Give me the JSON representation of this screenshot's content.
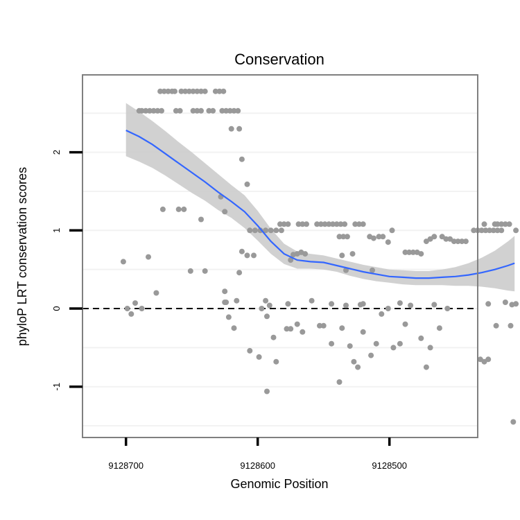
{
  "chart_data": {
    "type": "scatter",
    "title": "Conservation",
    "xlabel": "Genomic Position",
    "ylabel": "phyloP LRT conservation scores",
    "x_reversed": true,
    "xlim": [
      9128733,
      9128433
    ],
    "ylim": [
      -1.65,
      2.99
    ],
    "x_ticks": [
      9128700,
      9128600,
      9128500
    ],
    "x_tick_labels": [
      "9128700",
      "9128600",
      "9128500"
    ],
    "y_ticks": [
      -1,
      0,
      1,
      2
    ],
    "y_tick_labels": [
      "-1",
      "0",
      "1",
      "2"
    ],
    "reference_line": {
      "y": 0,
      "style": "dashed"
    },
    "colors": {
      "points": "#999999",
      "smooth": "#3366ff",
      "ribbon": "#cccccc",
      "grid": "#f2f2f2",
      "frame": "#7f7f7f"
    },
    "points": [
      {
        "x": 9128690,
        "y": 2.53
      },
      {
        "x": 9128688,
        "y": 2.53
      },
      {
        "x": 9128685,
        "y": 2.53
      },
      {
        "x": 9128682,
        "y": 2.53
      },
      {
        "x": 9128679,
        "y": 2.53
      },
      {
        "x": 9128676,
        "y": 2.53
      },
      {
        "x": 9128673,
        "y": 2.53
      },
      {
        "x": 9128674,
        "y": 2.78
      },
      {
        "x": 9128671,
        "y": 2.78
      },
      {
        "x": 9128668,
        "y": 2.78
      },
      {
        "x": 9128665,
        "y": 2.78
      },
      {
        "x": 9128663,
        "y": 2.78
      },
      {
        "x": 9128658,
        "y": 2.78
      },
      {
        "x": 9128655,
        "y": 2.78
      },
      {
        "x": 9128652,
        "y": 2.78
      },
      {
        "x": 9128649,
        "y": 2.78
      },
      {
        "x": 9128646,
        "y": 2.78
      },
      {
        "x": 9128643,
        "y": 2.78
      },
      {
        "x": 9128640,
        "y": 2.78
      },
      {
        "x": 9128632,
        "y": 2.78
      },
      {
        "x": 9128629,
        "y": 2.78
      },
      {
        "x": 9128626,
        "y": 2.78
      },
      {
        "x": 9128662,
        "y": 2.53
      },
      {
        "x": 9128659,
        "y": 2.53
      },
      {
        "x": 9128649,
        "y": 2.53
      },
      {
        "x": 9128646,
        "y": 2.53
      },
      {
        "x": 9128643,
        "y": 2.53
      },
      {
        "x": 9128637,
        "y": 2.53
      },
      {
        "x": 9128634,
        "y": 2.53
      },
      {
        "x": 9128627,
        "y": 2.53
      },
      {
        "x": 9128624,
        "y": 2.53
      },
      {
        "x": 9128621,
        "y": 2.53
      },
      {
        "x": 9128618,
        "y": 2.53
      },
      {
        "x": 9128615,
        "y": 2.53
      },
      {
        "x": 9128620,
        "y": 2.3
      },
      {
        "x": 9128614,
        "y": 2.3
      },
      {
        "x": 9128612,
        "y": 1.91
      },
      {
        "x": 9128608,
        "y": 1.59
      },
      {
        "x": 9128672,
        "y": 1.27
      },
      {
        "x": 9128660,
        "y": 1.27
      },
      {
        "x": 9128656,
        "y": 1.27
      },
      {
        "x": 9128643,
        "y": 1.14
      },
      {
        "x": 9128628,
        "y": 1.43
      },
      {
        "x": 9128625,
        "y": 1.24
      },
      {
        "x": 9128606,
        "y": 1.0
      },
      {
        "x": 9128602,
        "y": 1.0
      },
      {
        "x": 9128598,
        "y": 1.0
      },
      {
        "x": 9128594,
        "y": 1.0
      },
      {
        "x": 9128590,
        "y": 1.0
      },
      {
        "x": 9128586,
        "y": 1.0
      },
      {
        "x": 9128582,
        "y": 1.0
      },
      {
        "x": 9128583,
        "y": 1.08
      },
      {
        "x": 9128580,
        "y": 1.08
      },
      {
        "x": 9128577,
        "y": 1.08
      },
      {
        "x": 9128569,
        "y": 1.08
      },
      {
        "x": 9128566,
        "y": 1.08
      },
      {
        "x": 9128563,
        "y": 1.08
      },
      {
        "x": 9128555,
        "y": 1.08
      },
      {
        "x": 9128552,
        "y": 1.08
      },
      {
        "x": 9128549,
        "y": 1.08
      },
      {
        "x": 9128546,
        "y": 1.08
      },
      {
        "x": 9128543,
        "y": 1.08
      },
      {
        "x": 9128540,
        "y": 1.08
      },
      {
        "x": 9128537,
        "y": 1.08
      },
      {
        "x": 9128534,
        "y": 1.08
      },
      {
        "x": 9128526,
        "y": 1.08
      },
      {
        "x": 9128523,
        "y": 1.08
      },
      {
        "x": 9128520,
        "y": 1.08
      },
      {
        "x": 9128538,
        "y": 0.92
      },
      {
        "x": 9128535,
        "y": 0.92
      },
      {
        "x": 9128532,
        "y": 0.92
      },
      {
        "x": 9128515,
        "y": 0.92
      },
      {
        "x": 9128512,
        "y": 0.9
      },
      {
        "x": 9128508,
        "y": 0.92
      },
      {
        "x": 9128505,
        "y": 0.92
      },
      {
        "x": 9128501,
        "y": 0.85
      },
      {
        "x": 9128498,
        "y": 1.0
      },
      {
        "x": 9128472,
        "y": 0.86
      },
      {
        "x": 9128469,
        "y": 0.89
      },
      {
        "x": 9128466,
        "y": 0.92
      },
      {
        "x": 9128460,
        "y": 0.92
      },
      {
        "x": 9128457,
        "y": 0.89
      },
      {
        "x": 9128454,
        "y": 0.89
      },
      {
        "x": 9128451,
        "y": 0.86
      },
      {
        "x": 9128448,
        "y": 0.86
      },
      {
        "x": 9128445,
        "y": 0.86
      },
      {
        "x": 9128442,
        "y": 0.86
      },
      {
        "x": 9128436,
        "y": 1.0
      },
      {
        "x": 9128433,
        "y": 1.0
      },
      {
        "x": 9128430,
        "y": 1.0
      },
      {
        "x": 9128427,
        "y": 1.0
      },
      {
        "x": 9128424,
        "y": 1.0
      },
      {
        "x": 9128421,
        "y": 1.0
      },
      {
        "x": 9128418,
        "y": 1.0
      },
      {
        "x": 9128415,
        "y": 1.0
      },
      {
        "x": 9128428,
        "y": 1.08
      },
      {
        "x": 9128420,
        "y": 1.08
      },
      {
        "x": 9128418,
        "y": 1.08
      },
      {
        "x": 9128415,
        "y": 1.08
      },
      {
        "x": 9128412,
        "y": 1.08
      },
      {
        "x": 9128409,
        "y": 1.08
      },
      {
        "x": 9128404,
        "y": 1.0
      },
      {
        "x": 9128612,
        "y": 0.73
      },
      {
        "x": 9128608,
        "y": 0.68
      },
      {
        "x": 9128603,
        "y": 0.68
      },
      {
        "x": 9128573,
        "y": 0.69
      },
      {
        "x": 9128570,
        "y": 0.7
      },
      {
        "x": 9128567,
        "y": 0.72
      },
      {
        "x": 9128564,
        "y": 0.7
      },
      {
        "x": 9128536,
        "y": 0.68
      },
      {
        "x": 9128528,
        "y": 0.7
      },
      {
        "x": 9128488,
        "y": 0.72
      },
      {
        "x": 9128485,
        "y": 0.72
      },
      {
        "x": 9128482,
        "y": 0.72
      },
      {
        "x": 9128479,
        "y": 0.72
      },
      {
        "x": 9128476,
        "y": 0.7
      },
      {
        "x": 9128640,
        "y": 0.48
      },
      {
        "x": 9128625,
        "y": 0.22
      },
      {
        "x": 9128614,
        "y": 0.46
      },
      {
        "x": 9128575,
        "y": 0.62
      },
      {
        "x": 9128533,
        "y": 0.49
      },
      {
        "x": 9128513,
        "y": 0.49
      },
      {
        "x": 9128702,
        "y": 0.6
      },
      {
        "x": 9128683,
        "y": 0.66
      },
      {
        "x": 9128677,
        "y": 0.2
      },
      {
        "x": 9128651,
        "y": 0.48
      },
      {
        "x": 9128699,
        "y": 0.0
      },
      {
        "x": 9128696,
        "y": -0.07
      },
      {
        "x": 9128693,
        "y": 0.07
      },
      {
        "x": 9128688,
        "y": 0.0
      },
      {
        "x": 9128624,
        "y": 0.08
      },
      {
        "x": 9128616,
        "y": 0.1
      },
      {
        "x": 9128597,
        "y": 0.0
      },
      {
        "x": 9128594,
        "y": 0.1
      },
      {
        "x": 9128591,
        "y": 0.04
      },
      {
        "x": 9128577,
        "y": 0.06
      },
      {
        "x": 9128559,
        "y": 0.1
      },
      {
        "x": 9128544,
        "y": 0.06
      },
      {
        "x": 9128533,
        "y": 0.04
      },
      {
        "x": 9128522,
        "y": 0.05
      },
      {
        "x": 9128520,
        "y": 0.06
      },
      {
        "x": 9128501,
        "y": 0.0
      },
      {
        "x": 9128492,
        "y": 0.07
      },
      {
        "x": 9128484,
        "y": 0.04
      },
      {
        "x": 9128466,
        "y": 0.05
      },
      {
        "x": 9128456,
        "y": 0.0
      },
      {
        "x": 9128425,
        "y": 0.06
      },
      {
        "x": 9128412,
        "y": 0.08
      },
      {
        "x": 9128407,
        "y": 0.05
      },
      {
        "x": 9128404,
        "y": 0.06
      },
      {
        "x": 9128625,
        "y": 0.08
      },
      {
        "x": 9128622,
        "y": -0.11
      },
      {
        "x": 9128618,
        "y": -0.25
      },
      {
        "x": 9128606,
        "y": -0.54
      },
      {
        "x": 9128599,
        "y": -0.62
      },
      {
        "x": 9128593,
        "y": -0.1
      },
      {
        "x": 9128588,
        "y": -0.37
      },
      {
        "x": 9128586,
        "y": -0.68
      },
      {
        "x": 9128578,
        "y": -0.26
      },
      {
        "x": 9128575,
        "y": -0.26
      },
      {
        "x": 9128570,
        "y": -0.2
      },
      {
        "x": 9128566,
        "y": -0.3
      },
      {
        "x": 9128553,
        "y": -0.22
      },
      {
        "x": 9128550,
        "y": -0.22
      },
      {
        "x": 9128544,
        "y": -0.45
      },
      {
        "x": 9128538,
        "y": -0.94
      },
      {
        "x": 9128536,
        "y": -0.25
      },
      {
        "x": 9128530,
        "y": -0.48
      },
      {
        "x": 9128527,
        "y": -0.68
      },
      {
        "x": 9128524,
        "y": -0.75
      },
      {
        "x": 9128520,
        "y": -0.3
      },
      {
        "x": 9128514,
        "y": -0.6
      },
      {
        "x": 9128510,
        "y": -0.45
      },
      {
        "x": 9128506,
        "y": -0.07
      },
      {
        "x": 9128497,
        "y": -0.5
      },
      {
        "x": 9128492,
        "y": -0.45
      },
      {
        "x": 9128488,
        "y": -0.2
      },
      {
        "x": 9128476,
        "y": -0.38
      },
      {
        "x": 9128472,
        "y": -0.75
      },
      {
        "x": 9128469,
        "y": -0.5
      },
      {
        "x": 9128462,
        "y": -0.25
      },
      {
        "x": 9128431,
        "y": -0.65
      },
      {
        "x": 9128428,
        "y": -0.68
      },
      {
        "x": 9128425,
        "y": -0.65
      },
      {
        "x": 9128419,
        "y": -0.22
      },
      {
        "x": 9128408,
        "y": -0.22
      },
      {
        "x": 9128593,
        "y": -1.06
      },
      {
        "x": 9128406,
        "y": -1.45
      }
    ],
    "smooth": {
      "x": [
        9128700,
        9128690,
        9128680,
        9128670,
        9128660,
        9128650,
        9128640,
        9128630,
        9128620,
        9128610,
        9128600,
        9128590,
        9128580,
        9128570,
        9128560,
        9128550,
        9128540,
        9128530,
        9128520,
        9128510,
        9128500,
        9128490,
        9128480,
        9128470,
        9128460,
        9128450,
        9128440,
        9128430,
        9128420,
        9128410,
        9128405
      ],
      "y": [
        2.28,
        2.2,
        2.1,
        1.98,
        1.86,
        1.74,
        1.62,
        1.49,
        1.37,
        1.24,
        1.06,
        0.86,
        0.7,
        0.62,
        0.6,
        0.59,
        0.55,
        0.51,
        0.47,
        0.44,
        0.41,
        0.4,
        0.39,
        0.39,
        0.4,
        0.41,
        0.43,
        0.46,
        0.5,
        0.55,
        0.58
      ],
      "ymin": [
        1.95,
        1.88,
        1.8,
        1.7,
        1.59,
        1.48,
        1.38,
        1.26,
        1.16,
        1.03,
        0.87,
        0.7,
        0.57,
        0.51,
        0.51,
        0.5,
        0.47,
        0.42,
        0.38,
        0.35,
        0.33,
        0.31,
        0.3,
        0.3,
        0.3,
        0.29,
        0.29,
        0.28,
        0.26,
        0.23,
        0.22
      ],
      "ymax": [
        2.63,
        2.52,
        2.4,
        2.27,
        2.13,
        2.0,
        1.86,
        1.72,
        1.58,
        1.45,
        1.25,
        1.02,
        0.83,
        0.73,
        0.7,
        0.68,
        0.64,
        0.6,
        0.56,
        0.53,
        0.5,
        0.49,
        0.48,
        0.48,
        0.5,
        0.53,
        0.58,
        0.65,
        0.74,
        0.86,
        0.93
      ]
    }
  }
}
